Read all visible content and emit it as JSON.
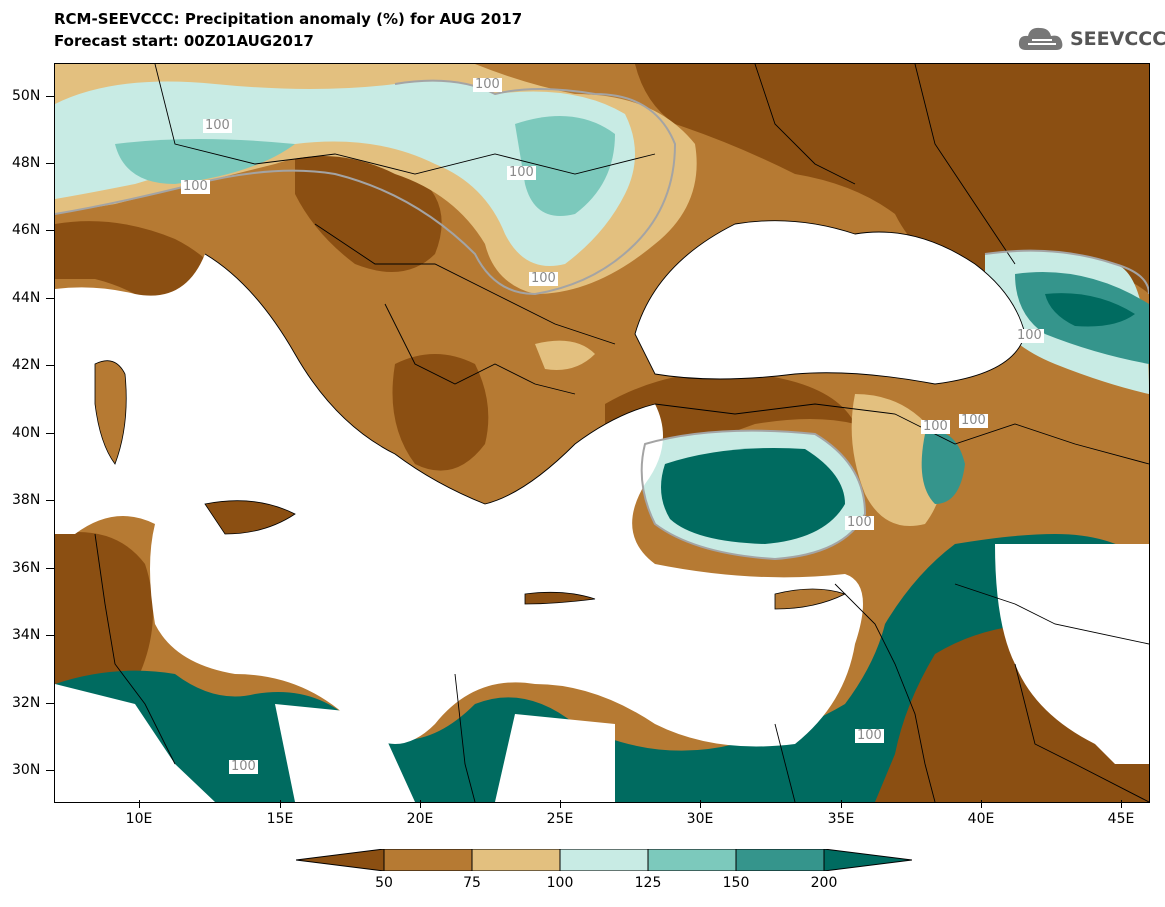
{
  "title": {
    "line1": "RCM-SEEVCCC: Precipitation anomaly (%) for AUG 2017",
    "line2": "Forecast start: 00Z01AUG2017"
  },
  "logo": {
    "text": "SEEVCCC",
    "icon": "cloud-icon"
  },
  "axes": {
    "lat_labels": [
      "50N",
      "48N",
      "46N",
      "44N",
      "42N",
      "40N",
      "38N",
      "36N",
      "34N",
      "32N",
      "30N"
    ],
    "lon_labels": [
      "10E",
      "15E",
      "20E",
      "25E",
      "30E",
      "35E",
      "40E",
      "45E"
    ]
  },
  "contour_labels": [
    "100",
    "100",
    "100",
    "100",
    "100",
    "100",
    "100",
    "100",
    "100",
    "100",
    "100"
  ],
  "colorbar": {
    "labels": [
      "50",
      "75",
      "100",
      "125",
      "150",
      "200"
    ],
    "colors": [
      "#8b4f12",
      "#b67a33",
      "#e3c07f",
      "#c8ebe4",
      "#7cc9bc",
      "#35958c",
      "#006b60"
    ]
  },
  "legend_colors": {
    "land": "#b67a33",
    "dry": "#8b4f12",
    "sea": "#ffffff",
    "border": "#000000"
  }
}
